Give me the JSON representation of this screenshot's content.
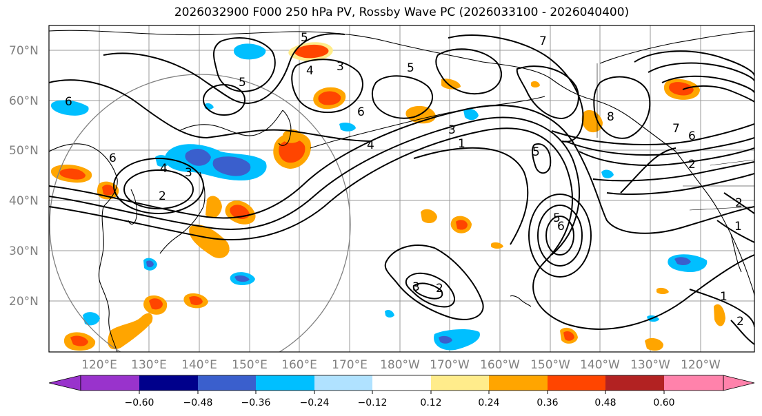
{
  "title": "2026032900 F000 250 hPa PV, Rossby Wave PC (2026033100 - 2026040400)",
  "lat_labels": [
    "70°N",
    "60°N",
    "50°N",
    "40°N",
    "30°N",
    "20°N"
  ],
  "lon_labels": [
    "120°E",
    "130°E",
    "140°E",
    "150°E",
    "160°E",
    "170°E",
    "180°W",
    "170°W",
    "160°W",
    "150°W",
    "140°W",
    "130°W",
    "120°W"
  ],
  "colorbar": {
    "colors": [
      "#9933cc",
      "#00008b",
      "#3a5fcd",
      "#00bfff",
      "#b0e2ff",
      "#ffffff",
      "#ffec8b",
      "#ffa500",
      "#ff4500",
      "#b22222",
      "#ff82ab"
    ],
    "tick_labels": [
      "−0.60",
      "−0.48",
      "−0.36",
      "−0.24",
      "−0.12",
      "0.12",
      "0.24",
      "0.36",
      "0.48",
      "0.60"
    ]
  },
  "contour_labels": [
    "5",
    "4",
    "3",
    "5",
    "6",
    "4",
    "5",
    "3",
    "7",
    "6",
    "4",
    "3",
    "2",
    "1",
    "5",
    "8",
    "7",
    "6",
    "2",
    "1",
    "2",
    "6",
    "5",
    "6",
    "3",
    "2",
    "1",
    "2"
  ],
  "colors": {
    "contour": "#000000",
    "grid": "#999999",
    "circle": "#808080",
    "axis_label": "#7f7f7f"
  }
}
